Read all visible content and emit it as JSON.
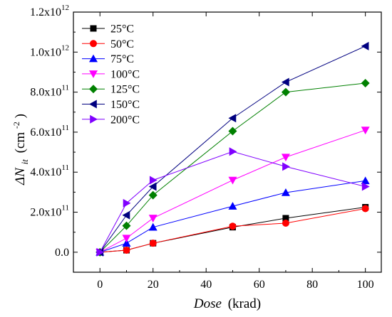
{
  "chart_data": {
    "type": "line",
    "xlabel_italic": "Dose",
    "xlabel_unit": "(krad)",
    "ylabel_symbol": "ΔN",
    "ylabel_sub": "it",
    "ylabel_unit_pre": "(cm",
    "ylabel_unit_sup": "-2",
    "ylabel_unit_post": ")",
    "xlim": [
      -10,
      106
    ],
    "ylim": [
      -100000000000.0,
      1200000000000.0
    ],
    "x_ticks": [
      0,
      20,
      40,
      60,
      80,
      100
    ],
    "x_tick_labels": [
      "0",
      "20",
      "40",
      "60",
      "80",
      "100"
    ],
    "y_ticks": [
      0,
      200000000000.0,
      400000000000.0,
      600000000000.0,
      800000000000.0,
      1000000000000.0,
      1200000000000.0
    ],
    "y_tick_labels": [
      {
        "base": "0.0",
        "exp": ""
      },
      {
        "base": "2.0x10",
        "exp": "11"
      },
      {
        "base": "4.0x10",
        "exp": "11"
      },
      {
        "base": "6.0x10",
        "exp": "11"
      },
      {
        "base": "8.0x10",
        "exp": "11"
      },
      {
        "base": "1.0x10",
        "exp": "12"
      },
      {
        "base": "1.2x10",
        "exp": "12"
      }
    ],
    "x": [
      0,
      10,
      20,
      50,
      70,
      100
    ],
    "legend_position": "top-left",
    "series": [
      {
        "name": "25°C",
        "color": "#000000",
        "marker": "square",
        "values": [
          0,
          10000000000.0,
          45000000000.0,
          125000000000.0,
          170000000000.0,
          225000000000.0
        ]
      },
      {
        "name": "50°C",
        "color": "#ff0000",
        "marker": "circle",
        "values": [
          0,
          10000000000.0,
          45000000000.0,
          130000000000.0,
          145000000000.0,
          218000000000.0
        ]
      },
      {
        "name": "75°C",
        "color": "#0000ff",
        "marker": "triangle-up",
        "values": [
          0,
          45000000000.0,
          125000000000.0,
          230000000000.0,
          298000000000.0,
          357000000000.0
        ]
      },
      {
        "name": "100°C",
        "color": "#ff00ff",
        "marker": "triangle-down",
        "values": [
          0,
          70000000000.0,
          170000000000.0,
          360000000000.0,
          475000000000.0,
          610000000000.0
        ]
      },
      {
        "name": "125°C",
        "color": "#008000",
        "marker": "diamond",
        "values": [
          0,
          132000000000.0,
          285000000000.0,
          605000000000.0,
          800000000000.0,
          845000000000.0
        ]
      },
      {
        "name": "150°C",
        "color": "#000080",
        "marker": "triangle-left",
        "values": [
          0,
          185000000000.0,
          328000000000.0,
          670000000000.0,
          850000000000.0,
          1030000000000.0
        ]
      },
      {
        "name": "200°C",
        "color": "#8000ff",
        "marker": "triangle-right",
        "values": [
          0,
          245000000000.0,
          360000000000.0,
          503000000000.0,
          428000000000.0,
          328000000000.0
        ]
      }
    ]
  }
}
